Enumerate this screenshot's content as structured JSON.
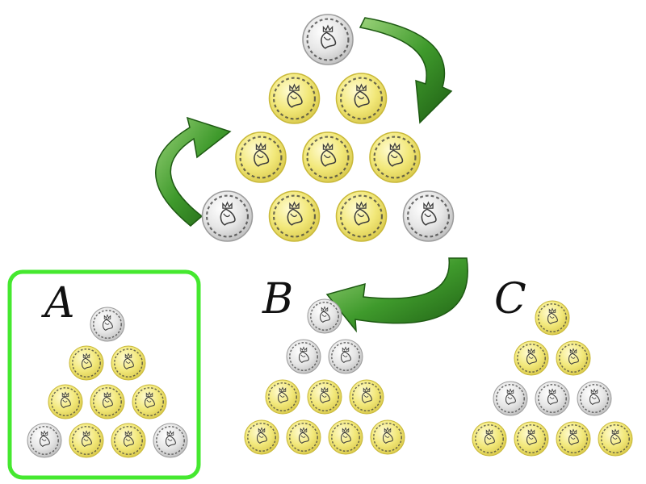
{
  "colors": {
    "gold": "#f2e87a",
    "gold_dark": "#c9b93a",
    "silver": "#e6e6e6",
    "silver_dark": "#9c9c9c",
    "engraving": "#3c3c3c",
    "arrow": "#2e7d1f",
    "arrow_light": "#7fc15e",
    "highlight_box": "#45e82f"
  },
  "icons": {
    "coin": "coin-icon",
    "arrow": "curved-arrow-icon"
  },
  "main_triangle": {
    "rows": [
      [
        "silver"
      ],
      [
        "gold",
        "gold"
      ],
      [
        "gold",
        "gold",
        "gold"
      ],
      [
        "silver",
        "gold",
        "gold",
        "silver"
      ]
    ]
  },
  "options": [
    {
      "letter": "A",
      "selected": true,
      "rows": [
        [
          "silver"
        ],
        [
          "gold",
          "gold"
        ],
        [
          "gold",
          "gold",
          "gold"
        ],
        [
          "silver",
          "gold",
          "gold",
          "silver"
        ]
      ]
    },
    {
      "letter": "B",
      "selected": false,
      "rows": [
        [
          "silver"
        ],
        [
          "silver",
          "silver"
        ],
        [
          "gold",
          "gold",
          "gold"
        ],
        [
          "gold",
          "gold",
          "gold",
          "gold"
        ]
      ]
    },
    {
      "letter": "C",
      "selected": false,
      "rows": [
        [
          "gold"
        ],
        [
          "gold",
          "gold"
        ],
        [
          "silver",
          "silver",
          "silver"
        ],
        [
          "gold",
          "gold",
          "gold",
          "gold"
        ]
      ]
    }
  ]
}
